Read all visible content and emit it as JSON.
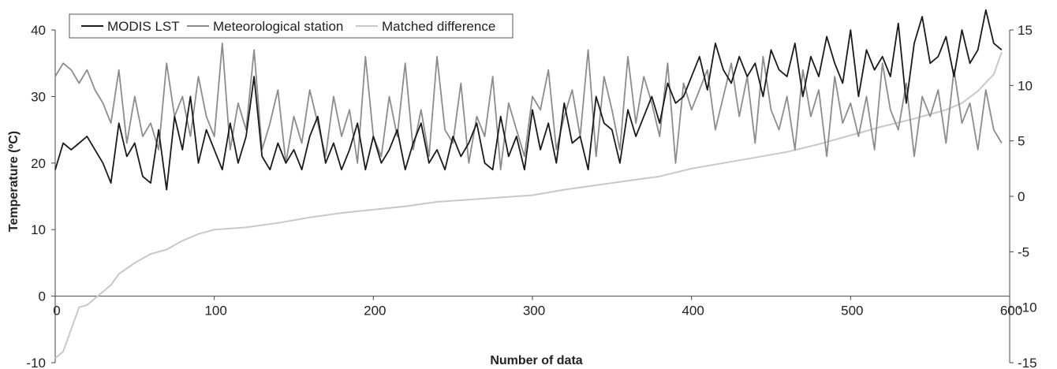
{
  "chart_data": {
    "type": "line",
    "xlabel": "Number of data",
    "ylabel": "Temperature (ºC)",
    "xlim": [
      0,
      600
    ],
    "ylim_left": [
      -10,
      40
    ],
    "ylim_right": [
      -15,
      15
    ],
    "x_ticks": [
      0,
      100,
      200,
      300,
      400,
      500,
      600
    ],
    "y_left_ticks": [
      -10,
      0,
      10,
      20,
      30,
      40
    ],
    "y_right_ticks": [
      -15,
      -10,
      -5,
      0,
      5,
      10,
      15
    ],
    "grid": false,
    "legend": {
      "placement": "top-left"
    },
    "series": [
      {
        "name": "MODIS LST",
        "axis": "left",
        "color": "#1a1a1a",
        "x": [
          0,
          5,
          10,
          15,
          20,
          25,
          30,
          35,
          40,
          45,
          50,
          55,
          60,
          65,
          70,
          75,
          80,
          85,
          90,
          95,
          100,
          105,
          110,
          115,
          120,
          125,
          130,
          135,
          140,
          145,
          150,
          155,
          160,
          165,
          170,
          175,
          180,
          185,
          190,
          195,
          200,
          205,
          210,
          215,
          220,
          225,
          230,
          235,
          240,
          245,
          250,
          255,
          260,
          265,
          270,
          275,
          280,
          285,
          290,
          295,
          300,
          305,
          310,
          315,
          320,
          325,
          330,
          335,
          340,
          345,
          350,
          355,
          360,
          365,
          370,
          375,
          380,
          385,
          390,
          395,
          400,
          405,
          410,
          415,
          420,
          425,
          430,
          435,
          440,
          445,
          450,
          455,
          460,
          465,
          470,
          475,
          480,
          485,
          490,
          495,
          500,
          505,
          510,
          515,
          520,
          525,
          530,
          535,
          540,
          545,
          550,
          555,
          560,
          565,
          570,
          575,
          580,
          585,
          590,
          595
        ],
        "values": [
          19,
          23,
          22,
          23,
          24,
          22,
          20,
          17,
          26,
          21,
          23,
          18,
          17,
          25,
          16,
          27,
          22,
          30,
          20,
          25,
          22,
          19,
          26,
          20,
          24,
          33,
          21,
          19,
          23,
          20,
          22,
          19,
          24,
          27,
          20,
          23,
          19,
          22,
          26,
          19,
          24,
          20,
          22,
          25,
          19,
          23,
          26,
          20,
          22,
          19,
          24,
          21,
          23,
          26,
          20,
          19,
          27,
          21,
          24,
          19,
          28,
          22,
          26,
          20,
          29,
          23,
          24,
          19,
          30,
          26,
          25,
          20,
          28,
          24,
          27,
          30,
          26,
          32,
          29,
          30,
          33,
          36,
          31,
          38,
          34,
          32,
          36,
          33,
          35,
          30,
          37,
          34,
          33,
          38,
          30,
          36,
          33,
          39,
          35,
          32,
          40,
          30,
          37,
          34,
          36,
          33,
          41,
          29,
          38,
          42,
          35,
          36,
          39,
          33,
          40,
          35,
          37,
          43,
          38,
          37
        ]
      },
      {
        "name": "Meteorological station",
        "axis": "left",
        "color": "#8c8c8c",
        "x": [
          0,
          5,
          10,
          15,
          20,
          25,
          30,
          35,
          40,
          45,
          50,
          55,
          60,
          65,
          70,
          75,
          80,
          85,
          90,
          95,
          100,
          105,
          110,
          115,
          120,
          125,
          130,
          135,
          140,
          145,
          150,
          155,
          160,
          165,
          170,
          175,
          180,
          185,
          190,
          195,
          200,
          205,
          210,
          215,
          220,
          225,
          230,
          235,
          240,
          245,
          250,
          255,
          260,
          265,
          270,
          275,
          280,
          285,
          290,
          295,
          300,
          305,
          310,
          315,
          320,
          325,
          330,
          335,
          340,
          345,
          350,
          355,
          360,
          365,
          370,
          375,
          380,
          385,
          390,
          395,
          400,
          405,
          410,
          415,
          420,
          425,
          430,
          435,
          440,
          445,
          450,
          455,
          460,
          465,
          470,
          475,
          480,
          485,
          490,
          495,
          500,
          505,
          510,
          515,
          520,
          525,
          530,
          535,
          540,
          545,
          550,
          555,
          560,
          565,
          570,
          575,
          580,
          585,
          590,
          595
        ],
        "values": [
          33,
          35,
          34,
          32,
          34,
          31,
          29,
          26,
          34,
          23,
          30,
          24,
          26,
          22,
          35,
          27,
          30,
          24,
          33,
          27,
          24,
          38,
          22,
          29,
          25,
          37,
          22,
          26,
          31,
          20,
          27,
          23,
          31,
          26,
          21,
          30,
          24,
          28,
          20,
          36,
          24,
          21,
          30,
          24,
          35,
          22,
          28,
          21,
          36,
          25,
          23,
          32,
          20,
          27,
          24,
          33,
          19,
          29,
          25,
          21,
          30,
          28,
          34,
          22,
          27,
          31,
          24,
          37,
          21,
          33,
          28,
          22,
          36,
          26,
          33,
          29,
          24,
          35,
          20,
          32,
          28,
          31,
          34,
          25,
          30,
          35,
          27,
          33,
          23,
          36,
          28,
          25,
          30,
          22,
          34,
          27,
          31,
          21,
          33,
          26,
          29,
          24,
          30,
          22,
          35,
          28,
          25,
          32,
          21,
          30,
          27,
          31,
          23,
          34,
          26,
          29,
          22,
          31,
          25,
          23
        ]
      },
      {
        "name": "Matched difference",
        "axis": "right",
        "color": "#c8c8c8",
        "x": [
          0,
          5,
          10,
          15,
          20,
          25,
          30,
          35,
          40,
          50,
          60,
          70,
          80,
          90,
          100,
          120,
          140,
          160,
          180,
          200,
          220,
          240,
          260,
          280,
          300,
          320,
          340,
          360,
          380,
          400,
          420,
          440,
          460,
          480,
          500,
          520,
          540,
          560,
          570,
          580,
          590,
          595
        ],
        "values": [
          -14.6,
          -14,
          -12,
          -10,
          -9.8,
          -9.2,
          -8.6,
          -8,
          -7,
          -6,
          -5.2,
          -4.8,
          -4,
          -3.4,
          -3,
          -2.8,
          -2.4,
          -1.9,
          -1.5,
          -1.2,
          -0.9,
          -0.5,
          -0.3,
          -0.1,
          0.1,
          0.6,
          1,
          1.4,
          1.8,
          2.5,
          3,
          3.5,
          4,
          4.7,
          5.5,
          6.3,
          7,
          7.8,
          8.4,
          9.5,
          11,
          13
        ]
      }
    ]
  }
}
